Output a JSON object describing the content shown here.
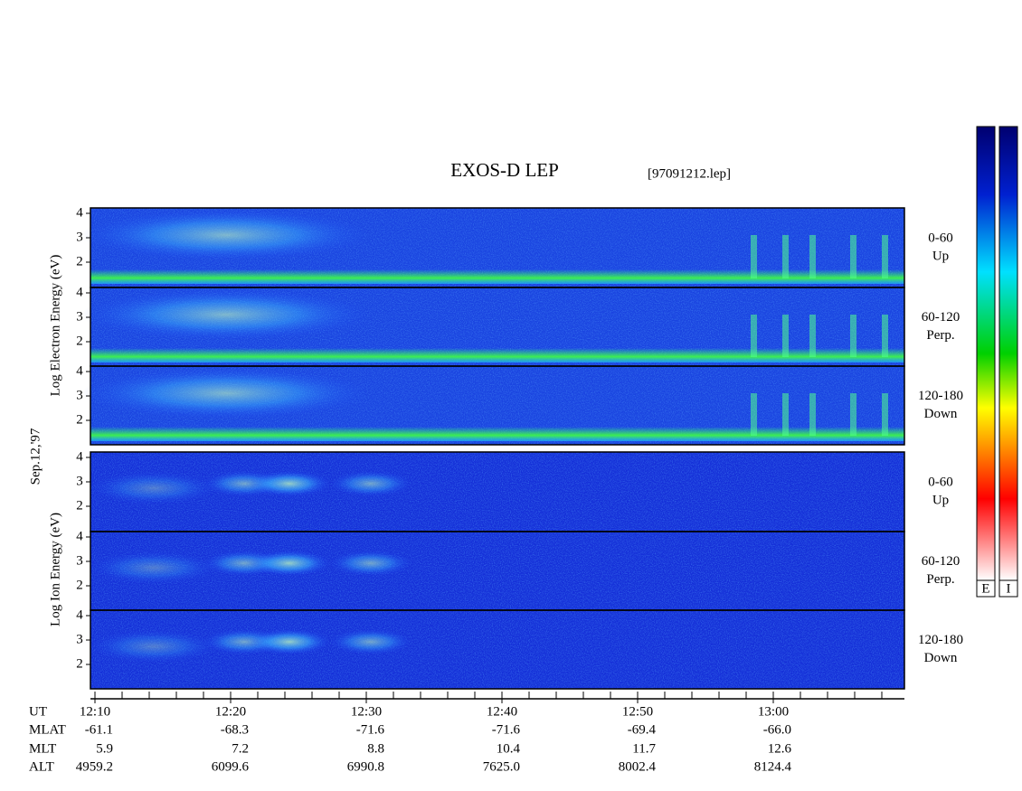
{
  "title": "EXOS-D LEP",
  "file": "[97091212.lep]",
  "date": "Sep.12,'97",
  "electron_axis_label": "Log Electron Energy (eV)",
  "ion_axis_label": "Log Ion Energy (eV)",
  "energy_ticks": [
    4,
    3,
    2
  ],
  "panels": [
    {
      "angle": "0-60",
      "direction": "Up"
    },
    {
      "angle": "60-120",
      "direction": "Perp."
    },
    {
      "angle": "120-180",
      "direction": "Down"
    }
  ],
  "ephemeris": {
    "labels": [
      "UT",
      "MLAT",
      "MLT",
      "ALT"
    ],
    "columns": [
      [
        "12:10",
        "-61.1",
        "5.9",
        "4959.2"
      ],
      [
        "12:20",
        "-68.3",
        "7.2",
        "6099.6"
      ],
      [
        "12:30",
        "-71.6",
        "8.8",
        "6990.8"
      ],
      [
        "12:40",
        "-71.6",
        "10.4",
        "7625.0"
      ],
      [
        "12:50",
        "-69.4",
        "11.7",
        "8002.4"
      ],
      [
        "13:00",
        "-66.0",
        "12.6",
        "8124.4"
      ]
    ]
  },
  "colorbar_labels": [
    "E",
    "I"
  ]
}
